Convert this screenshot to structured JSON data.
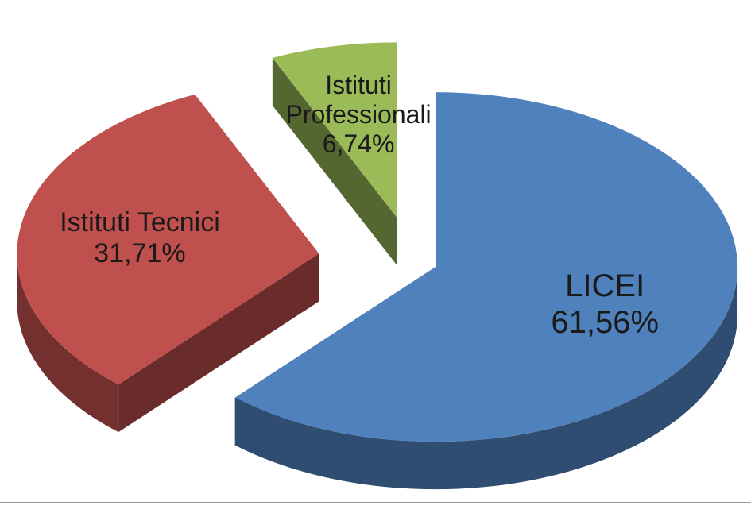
{
  "chart_data": {
    "type": "pie",
    "categories": [
      "LICEI",
      "Istituti Tecnici",
      "Istituti Professionali"
    ],
    "values": [
      61.56,
      31.71,
      6.74
    ],
    "value_labels": [
      "61,56%",
      "31,71%",
      "6,74%"
    ],
    "colors": [
      "#4f81bd",
      "#c0504d",
      "#9bbb59"
    ]
  }
}
